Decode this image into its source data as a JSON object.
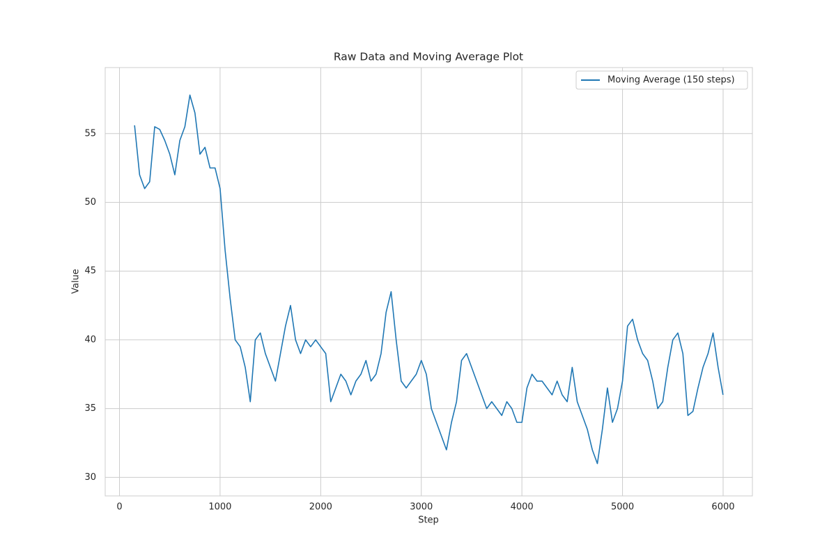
{
  "chart_data": {
    "type": "line",
    "title": "Raw Data and Moving Average Plot",
    "x_label": "Step",
    "y_label": "Value",
    "x": [
      150,
      200,
      250,
      300,
      350,
      400,
      450,
      500,
      550,
      600,
      650,
      700,
      750,
      800,
      850,
      900,
      950,
      1000,
      1050,
      1100,
      1150,
      1200,
      1250,
      1300,
      1350,
      1400,
      1450,
      1500,
      1550,
      1600,
      1650,
      1700,
      1750,
      1800,
      1850,
      1900,
      1950,
      2000,
      2050,
      2100,
      2150,
      2200,
      2250,
      2300,
      2350,
      2400,
      2450,
      2500,
      2550,
      2600,
      2650,
      2700,
      2750,
      2800,
      2850,
      2900,
      2950,
      3000,
      3050,
      3100,
      3150,
      3200,
      3250,
      3300,
      3350,
      3400,
      3450,
      3500,
      3550,
      3600,
      3650,
      3700,
      3750,
      3800,
      3850,
      3900,
      3950,
      4000,
      4050,
      4100,
      4150,
      4200,
      4250,
      4300,
      4350,
      4400,
      4450,
      4500,
      4550,
      4600,
      4650,
      4700,
      4750,
      4800,
      4850,
      4900,
      4950,
      5000,
      5050,
      5100,
      5150,
      5200,
      5250,
      5300,
      5350,
      5400,
      5450,
      5500,
      5550,
      5600,
      5650,
      5700,
      5750,
      5800,
      5850,
      5900,
      5950,
      5999
    ],
    "series": [
      {
        "name": "Moving Average (150 steps)",
        "color": "#1f77b4",
        "values": [
          55.6,
          52,
          51,
          51.5,
          55.5,
          55.3,
          54.5,
          53.5,
          52,
          54.5,
          55.5,
          57.8,
          56.5,
          53.5,
          54,
          52.5,
          52.5,
          51,
          46.5,
          43,
          40,
          39.5,
          38,
          35.5,
          40,
          40.5,
          39,
          38,
          37,
          39,
          41,
          42.5,
          40,
          39,
          40,
          39.5,
          40,
          39.5,
          39,
          35.5,
          36.5,
          37.5,
          37,
          36,
          37,
          37.5,
          38.5,
          37,
          37.5,
          39,
          42,
          43.5,
          40,
          37,
          36.5,
          37,
          37.5,
          38.5,
          37.5,
          35,
          34,
          33,
          32,
          34,
          35.5,
          38.5,
          39,
          38,
          37,
          36,
          35,
          35.5,
          35,
          34.5,
          35.5,
          35,
          34,
          34,
          36.5,
          37.5,
          37,
          37,
          36.5,
          36,
          37,
          36,
          35.5,
          38,
          35.5,
          34.5,
          33.5,
          32,
          31,
          33.5,
          36.5,
          34,
          35,
          37,
          41,
          41.5,
          40,
          39,
          38.5,
          37,
          35,
          35.5,
          38,
          40,
          40.5,
          39,
          34.5,
          34.8,
          36.5,
          38,
          39,
          40.5,
          38,
          36
        ]
      }
    ],
    "xlim": [
      -142,
      6291
    ],
    "ylim": [
      28.65,
      59.8
    ],
    "xticks": [
      0,
      1000,
      2000,
      3000,
      4000,
      5000,
      6000
    ],
    "yticks": [
      30,
      35,
      40,
      45,
      50,
      55
    ],
    "grid": true,
    "legend": "upper right"
  }
}
